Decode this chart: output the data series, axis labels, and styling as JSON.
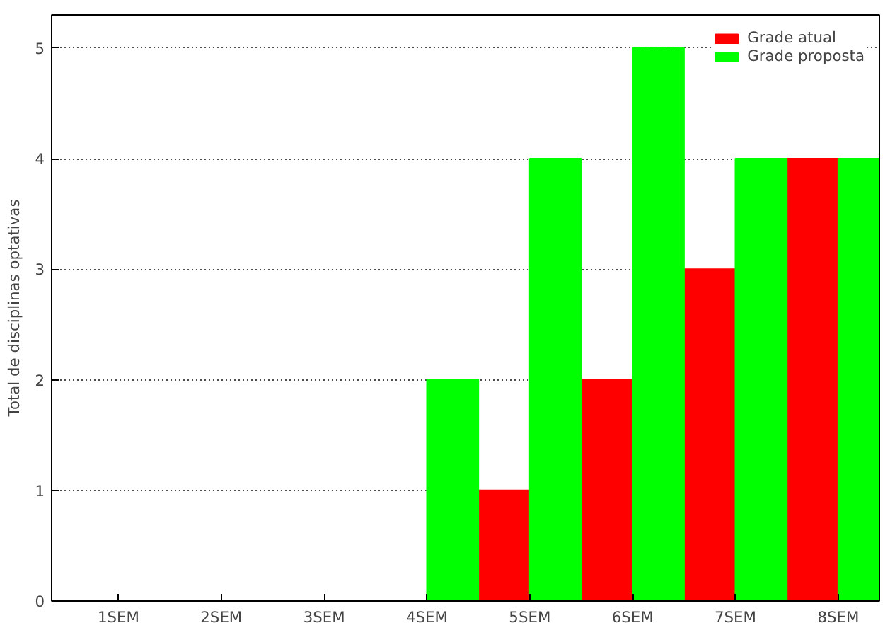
{
  "chart_data": {
    "type": "bar",
    "ylabel": "Total de disciplinas optativas",
    "categories": [
      "1SEM",
      "2SEM",
      "3SEM",
      "4SEM",
      "5SEM",
      "6SEM",
      "7SEM",
      "8SEM"
    ],
    "series": [
      {
        "name": "Grade atual",
        "color": "#ff0000",
        "values": [
          0,
          0,
          0,
          0,
          1,
          2,
          3,
          4
        ]
      },
      {
        "name": "Grade proposta",
        "color": "#00ff00",
        "values": [
          0,
          0,
          0,
          2,
          4,
          5,
          4,
          4
        ]
      }
    ],
    "ylim": [
      0,
      5.3
    ],
    "yticks": [
      0,
      1,
      2,
      3,
      4,
      5
    ],
    "grid": "y",
    "legend": "top right"
  }
}
